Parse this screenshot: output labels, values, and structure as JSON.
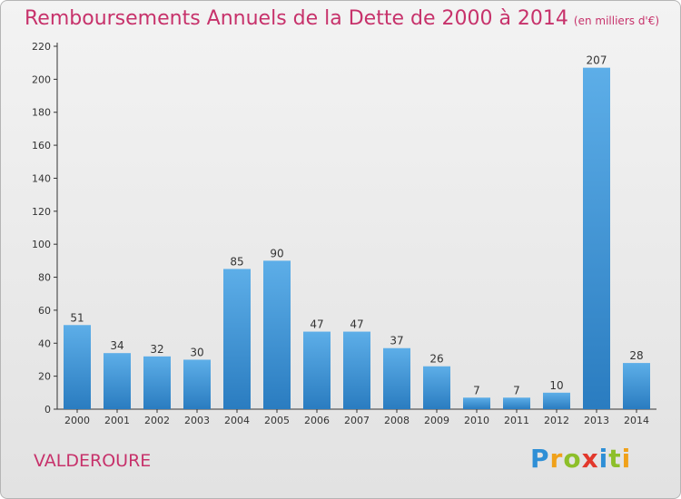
{
  "title": "Remboursements Annuels de la Dette de 2000 à 2014",
  "unit": "(en milliers d'€)",
  "commune": "VALDEROURE",
  "logo": {
    "text": "Proxiti",
    "letters": [
      {
        "ch": "P",
        "color": "#2e8fd6"
      },
      {
        "ch": "r",
        "color": "#f0a11a"
      },
      {
        "ch": "o",
        "color": "#8dbf2a"
      },
      {
        "ch": "x",
        "color": "#e2382c"
      },
      {
        "ch": "i",
        "color": "#2e8fd6"
      },
      {
        "ch": "t",
        "color": "#8dbf2a"
      },
      {
        "ch": "i",
        "color": "#f0a11a"
      }
    ]
  },
  "colors": {
    "accent": "#c7326b",
    "bar_top": "#5daee8",
    "bar_bottom": "#2a7cc0"
  },
  "chart_data": {
    "type": "bar",
    "categories": [
      "2000",
      "2001",
      "2002",
      "2003",
      "2004",
      "2005",
      "2006",
      "2007",
      "2008",
      "2009",
      "2010",
      "2011",
      "2012",
      "2013",
      "2014"
    ],
    "values": [
      51,
      34,
      32,
      30,
      85,
      90,
      47,
      47,
      37,
      26,
      7,
      7,
      10,
      207,
      28
    ],
    "ylim": [
      0,
      220
    ],
    "yticks": [
      0,
      20,
      40,
      60,
      80,
      100,
      120,
      140,
      160,
      180,
      200,
      220
    ],
    "grid": false,
    "data_labels": true
  }
}
